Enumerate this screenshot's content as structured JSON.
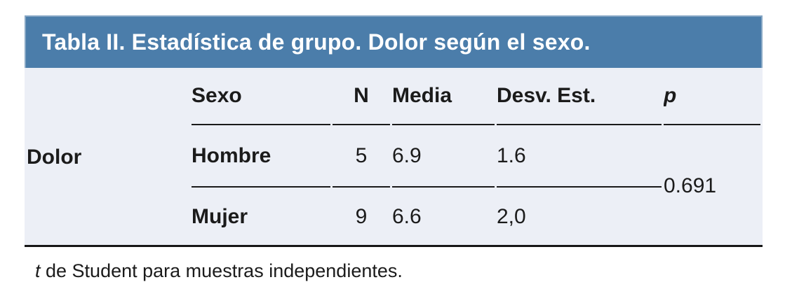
{
  "table": {
    "title": "Tabla II. Estadística de grupo. Dolor según el sexo.",
    "row_group_label": "Dolor",
    "columns": [
      "Sexo",
      "N",
      "Media",
      "Desv. Est.",
      "p"
    ],
    "rows": [
      {
        "sexo": "Hombre",
        "n": "5",
        "media": "6.9",
        "desv": "1.6"
      },
      {
        "sexo": "Mujer",
        "n": "9",
        "media": "6.6",
        "desv": "2,0"
      }
    ],
    "p_value": "0.691",
    "footnote_italic": "t",
    "footnote_rest": " de Student para muestras independientes."
  },
  "colors": {
    "title_bar_bg": "#4b7daa",
    "title_bar_border": "#87a7c5",
    "title_text": "#ffffff",
    "body_bg": "#eceff6",
    "text": "#1b1b1b",
    "rule": "#1a1a1a"
  },
  "chart_data": {
    "type": "table",
    "title": "Tabla II. Estadística de grupo. Dolor según el sexo.",
    "row_group": "Dolor",
    "columns": [
      "Sexo",
      "N",
      "Media",
      "Desv. Est.",
      "p"
    ],
    "rows": [
      [
        "Hombre",
        5,
        6.9,
        1.6,
        0.691
      ],
      [
        "Mujer",
        9,
        6.6,
        "2,0",
        0.691
      ]
    ],
    "footnote": "t de Student para muestras independientes."
  }
}
